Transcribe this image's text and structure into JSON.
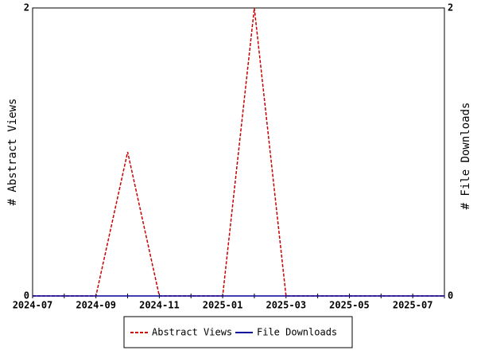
{
  "chart_data": {
    "type": "line",
    "categories": [
      "2024-07",
      null,
      "2024-09",
      null,
      "2024-11",
      null,
      "2025-01",
      null,
      "2025-03",
      null,
      "2025-05",
      null,
      "2025-07",
      null
    ],
    "series": [
      {
        "name": "Abstract Views",
        "color": "#cc0000",
        "dash": true,
        "values": [
          0,
          0,
          0,
          1,
          0,
          0,
          0,
          2,
          0,
          0,
          0,
          0,
          0,
          0
        ]
      },
      {
        "name": "File Downloads",
        "color": "#000099",
        "dash": false,
        "axis": "y2",
        "values": [
          0,
          0,
          0,
          0,
          0,
          0,
          0,
          0,
          0,
          0,
          0,
          0,
          0,
          0
        ]
      }
    ],
    "ylabel": "# Abstract Views",
    "y2label": "# File Downloads",
    "ylim": [
      0,
      2
    ],
    "yticks": [
      0,
      2
    ],
    "y2lim": [
      0,
      2
    ],
    "y2ticks": [
      0,
      2
    ]
  }
}
